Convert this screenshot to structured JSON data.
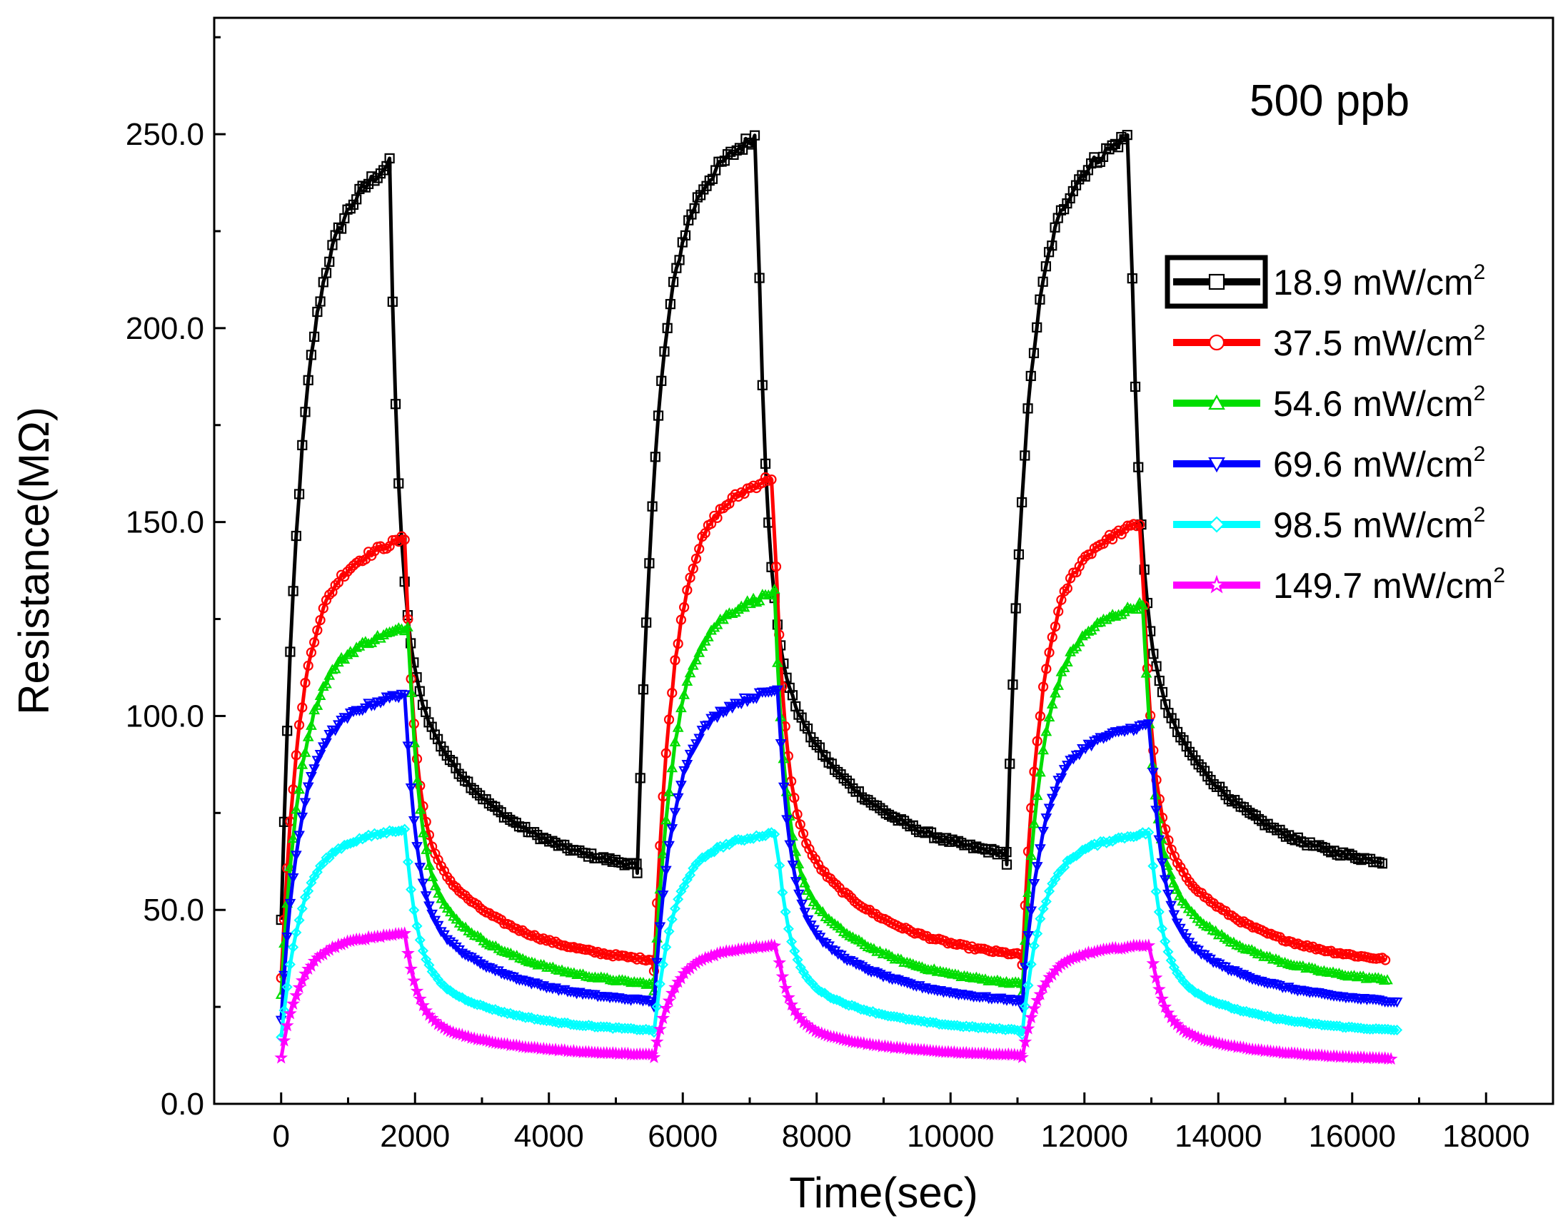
{
  "chart_data": {
    "type": "line",
    "title": "",
    "annotation": "500 ppb",
    "xlabel": "Time(sec)",
    "ylabel": "Resistance(MΩ)",
    "xlim": [
      -1000,
      19000
    ],
    "ylim": [
      0,
      280
    ],
    "xticks": [
      0,
      2000,
      4000,
      6000,
      8000,
      10000,
      12000,
      14000,
      16000,
      18000
    ],
    "xtick_labels": [
      "0",
      "2000",
      "4000",
      "6000",
      "8000",
      "10000",
      "12000",
      "14000",
      "16000",
      "18000"
    ],
    "yticks": [
      0,
      50,
      100,
      150,
      200,
      250
    ],
    "ytick_labels": [
      "0.0",
      "50.0",
      "100.0",
      "150.0",
      "200.0",
      "250.0"
    ],
    "grid": false,
    "legend_position": "top-right",
    "series": [
      {
        "name": "18.9 mW/cm2",
        "label": "18.9 mW/cm",
        "sup": "2",
        "color": "#000000",
        "marker": "square",
        "cycles": [
          {
            "x_on": 0,
            "x_off": 1620,
            "x_end": 5320,
            "base_start": 47,
            "plateau": 243,
            "recover": 58
          },
          {
            "x_on": 5320,
            "x_off": 7100,
            "x_end": 10840,
            "base_start": 58,
            "plateau": 250,
            "recover": 61
          },
          {
            "x_on": 10840,
            "x_off": 12670,
            "x_end": 16450,
            "base_start": 61,
            "plateau": 250,
            "recover": 59
          }
        ]
      },
      {
        "name": "37.5 mW/cm2",
        "label": "37.5 mW/cm",
        "sup": "2",
        "color": "#ff0000",
        "marker": "circle",
        "cycles": [
          {
            "x_on": 0,
            "x_off": 1850,
            "x_end": 5570,
            "base_start": 33,
            "plateau": 146,
            "recover": 35
          },
          {
            "x_on": 5570,
            "x_off": 7350,
            "x_end": 11070,
            "base_start": 35,
            "plateau": 162,
            "recover": 36
          },
          {
            "x_on": 11070,
            "x_off": 12850,
            "x_end": 16500,
            "base_start": 36,
            "plateau": 150,
            "recover": 35
          }
        ]
      },
      {
        "name": "54.6 mW/cm2",
        "label": "54.6 mW/cm",
        "sup": "2",
        "color": "#00dd00",
        "marker": "triangle-up",
        "cycles": [
          {
            "x_on": 0,
            "x_off": 1900,
            "x_end": 5570,
            "base_start": 28,
            "plateau": 123,
            "recover": 29
          },
          {
            "x_on": 5570,
            "x_off": 7370,
            "x_end": 11070,
            "base_start": 29,
            "plateau": 132,
            "recover": 29
          },
          {
            "x_on": 11070,
            "x_off": 12880,
            "x_end": 16550,
            "base_start": 29,
            "plateau": 129,
            "recover": 30
          }
        ]
      },
      {
        "name": "69.6 mW/cm2",
        "label": "69.6 mW/cm",
        "sup": "2",
        "color": "#0000ff",
        "marker": "triangle-down",
        "cycles": [
          {
            "x_on": 0,
            "x_off": 1850,
            "x_end": 5570,
            "base_start": 22,
            "plateau": 106,
            "recover": 25
          },
          {
            "x_on": 5570,
            "x_off": 7420,
            "x_end": 11070,
            "base_start": 25,
            "plateau": 107,
            "recover": 25
          },
          {
            "x_on": 11070,
            "x_off": 12980,
            "x_end": 16700,
            "base_start": 25,
            "plateau": 98,
            "recover": 25
          }
        ]
      },
      {
        "name": "98.5 mW/cm2",
        "label": "98.5 mW/cm",
        "sup": "2",
        "color": "#00ffff",
        "marker": "diamond",
        "cycles": [
          {
            "x_on": 0,
            "x_off": 1850,
            "x_end": 5570,
            "base_start": 17,
            "plateau": 71,
            "recover": 18
          },
          {
            "x_on": 5570,
            "x_off": 7400,
            "x_end": 11070,
            "base_start": 18,
            "plateau": 70,
            "recover": 18
          },
          {
            "x_on": 11070,
            "x_off": 12980,
            "x_end": 16700,
            "base_start": 18,
            "plateau": 70,
            "recover": 18
          }
        ]
      },
      {
        "name": "149.7 mW/cm2",
        "label": "149.7 mW/cm",
        "sup": "2",
        "color": "#ff00ff",
        "marker": "star",
        "cycles": [
          {
            "x_on": 0,
            "x_off": 1850,
            "x_end": 5570,
            "base_start": 12,
            "plateau": 44,
            "recover": 12
          },
          {
            "x_on": 5570,
            "x_off": 7400,
            "x_end": 11070,
            "base_start": 12,
            "plateau": 41,
            "recover": 12
          },
          {
            "x_on": 11070,
            "x_off": 12980,
            "x_end": 16600,
            "base_start": 12,
            "plateau": 41,
            "recover": 11
          }
        ]
      }
    ]
  }
}
